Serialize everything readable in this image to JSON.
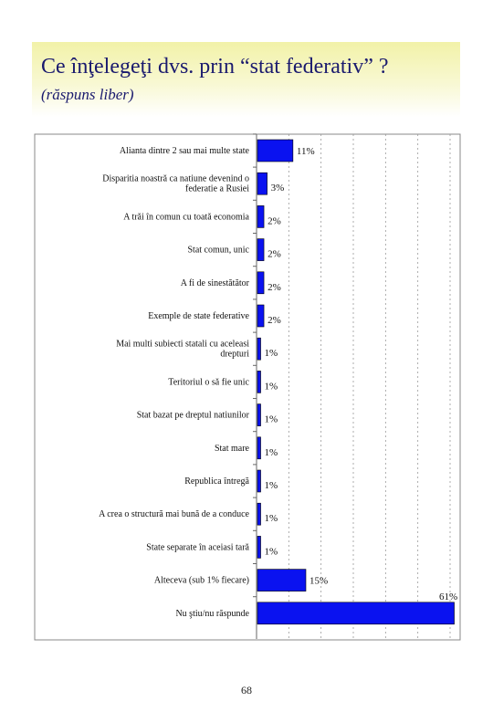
{
  "header": {
    "title": "Ce înţelegeţi dvs. prin “stat federativ” ?",
    "subtitle": "(răspuns liber)"
  },
  "colors": {
    "bar": "#0a12f0",
    "header_band": "#f2f2a8",
    "title_text": "#1a1a6e"
  },
  "chart_data": {
    "type": "bar",
    "orientation": "horizontal",
    "categories": [
      "Alianta dintre 2 sau mai multe state",
      "Disparitia noastră ca natiune devenind o federatie a Rusiei",
      "A trăi în comun cu toată economia",
      "Stat comun, unic",
      "A fi de sinestătător",
      "Exemple de state federative",
      "Mai multi subiecti statali cu aceleasi drepturi",
      "Teritoriul o să fie unic",
      "Stat bazat pe dreptul natiunilor",
      "Stat mare",
      "Republica întregă",
      "A crea o structură mai bună de a conduce",
      "State separate în aceiasi tară",
      "Alteceva (sub 1% fiecare)",
      "Nu ştiu/nu răspunde"
    ],
    "values": [
      11,
      3,
      2,
      2,
      2,
      2,
      1,
      1,
      1,
      1,
      1,
      1,
      1,
      15,
      61
    ],
    "value_labels": [
      "11%",
      "3%",
      "2%",
      "2%",
      "2%",
      "2%",
      "1%",
      "1%",
      "1%",
      "1%",
      "1%",
      "1%",
      "1%",
      "15%",
      "61%"
    ],
    "xlim": [
      0,
      60
    ],
    "grid": "vertical dashed",
    "legend": "none"
  },
  "footer": {
    "page_number": "68"
  }
}
